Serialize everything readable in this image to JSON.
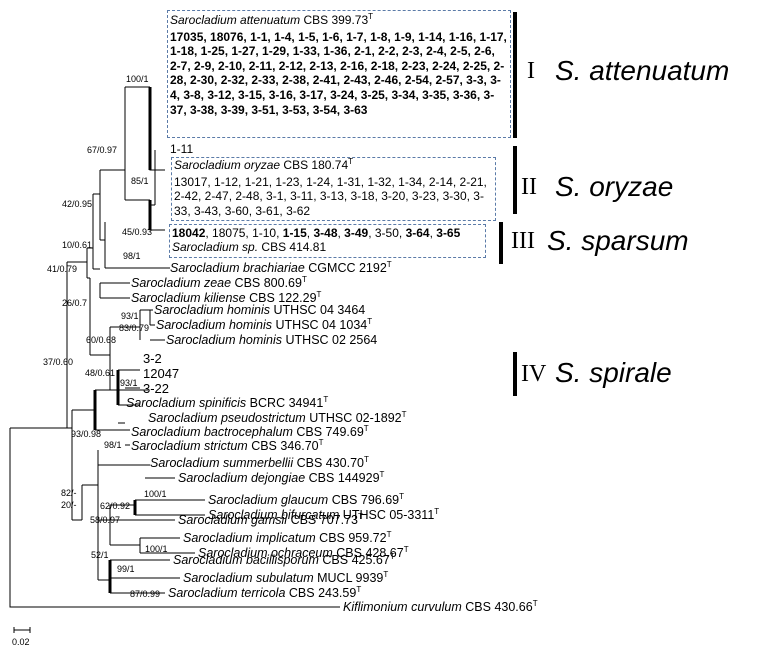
{
  "taxa": {
    "attenuatum_type": {
      "genus": "Sarocladium",
      "species": "attenuatum",
      "strain": "CBS 399.73",
      "sup": "T"
    },
    "attenuatum_strains": "17035, 18076, 1-1, 1-4, 1-5, 1-6, 1-7, 1-8, 1-9, 1-14, 1-16, 1-17, 1-18, 1-25, 1-27, 1-29, 1-33, 1-36, 2-1, 2-2, 2-3, 2-4, 2-5, 2-6, 2-7, 2-9, 2-10, 2-11, 2-12, 2-13, 2-16, 2-18, 2-23, 2-24, 2-25, 2-28, 2-30, 2-32, 2-33, 2-38, 2-41, 2-43, 2-46, 2-54, 2-57, 3-3, 3-4, 3-8, 3-12, 3-15, 3-16, 3-17, 3-24, 3-25, 3-34, 3-35, 3-36, 3-37, 3-38, 3-39, 3-51, 3-53, 3-54, 3-63",
    "oryzae_1_11": "1-11",
    "oryzae_type": {
      "genus": "Sarocladium",
      "species": "oryzae",
      "strain": "CBS 180.74",
      "sup": "T"
    },
    "oryzae_strains": "13017, 1-12, 1-21, 1-23, 1-24, 1-31, 1-32, 1-34, 2-14, 2-21, 2-42, 2-47, 2-48, 3-1, 3-11, 3-13, 3-18, 3-20, 3-23, 3-30, 3-33, 3-43, 3-60, 3-61, 3-62",
    "sparsum_strains": {
      "parts": [
        {
          "t": "18042",
          "b": true
        },
        {
          "t": ", 18075, 1-10, ",
          "b": false
        },
        {
          "t": "1-15",
          "b": true
        },
        {
          "t": ", ",
          "b": false
        },
        {
          "t": "3-48",
          "b": true
        },
        {
          "t": ", ",
          "b": false
        },
        {
          "t": "3-49",
          "b": true
        },
        {
          "t": ", 3-50, ",
          "b": false
        },
        {
          "t": "3-64",
          "b": true
        },
        {
          "t": ", ",
          "b": false
        },
        {
          "t": "3-65",
          "b": true
        }
      ]
    },
    "sparsum_sp": {
      "genus": "Sarocladium",
      "species": "sp.",
      "strain": "CBS 414.81"
    },
    "brachiariae": {
      "name": "Sarocladium brachiariae",
      "strain": "CGMCC 2192",
      "sup": "T"
    },
    "zeae": {
      "name": "Sarocladium zeae",
      "strain": "CBS 800.69",
      "sup": "T"
    },
    "kiliense": {
      "name": "Sarocladium kiliense",
      "strain": "CBS 122.29",
      "sup": "T"
    },
    "hominis1": {
      "name": "Sarocladium hominis",
      "strain": "UTHSC 04 3464"
    },
    "hominis2": {
      "name": "Sarocladium hominis",
      "strain": "UTHSC 04 1034",
      "sup": "T"
    },
    "hominis3": {
      "name": "Sarocladium hominis",
      "strain": "UTHSC 02 2564"
    },
    "spirale_3_2": "3-2",
    "spirale_12047": "12047",
    "spirale_3_22": "3-22",
    "spinificis": {
      "name": "Sarocladium spinificis",
      "strain": "BCRC 34941",
      "sup": "T"
    },
    "pseudostrictum": {
      "name": "Sarocladium pseudostrictum",
      "strain": "UTHSC 02-1892",
      "sup": "T"
    },
    "bactrocephalum": {
      "name": "Sarocladium bactrocephalum",
      "strain": "CBS 749.69",
      "sup": "T"
    },
    "strictum": {
      "name": "Sarocladium strictum",
      "strain": "CBS 346.70",
      "sup": "T"
    },
    "summerbellii": {
      "name": "Sarocladium summerbellii",
      "strain": "CBS 430.70",
      "sup": "T"
    },
    "dejongiae": {
      "name": "Sarocladium dejongiae",
      "strain": "CBS 144929",
      "sup": "T"
    },
    "glaucum": {
      "name": "Sarocladium glaucum",
      "strain": "CBS 796.69",
      "sup": "T"
    },
    "bifurcatum": {
      "name": "Sarocladium bifurcatum",
      "strain": "UTHSC 05-3311",
      "sup": "T"
    },
    "gamsii": {
      "name": "Sarocladium gamsii",
      "strain": "CBS 707.73",
      "sup": "T"
    },
    "implicatum": {
      "name": "Sarocladium implicatum",
      "strain": "CBS 959.72",
      "sup": "T"
    },
    "ochraceum": {
      "name": "Sarocladium ochraceum",
      "strain": "CBS 428.67",
      "sup": "T"
    },
    "bacillisporum": {
      "name": "Sarocladium bacillisporum",
      "strain": "CBS 425.67",
      "sup": "T"
    },
    "subulatum": {
      "name": "Sarocladium subulatum",
      "strain": "MUCL 9939",
      "sup": "T"
    },
    "terricola": {
      "name": "Sarocladium terricola",
      "strain": "CBS 243.59",
      "sup": "T"
    },
    "curvulum": {
      "name": "Kiflimonium curvulum",
      "strain": "CBS 430.66",
      "sup": "T"
    }
  },
  "supports": {
    "s100_1": "100/1",
    "s67": "67/0.97",
    "s85": "85/1",
    "s42": "42/0.95",
    "s45": "45/0.93",
    "s98_1": "98/1",
    "s10": "10/0.61",
    "s41": "41/0.79",
    "s26": "26/0.7",
    "s93_1a": "93/1",
    "s83": "83/0.79",
    "s60": "60/0.68",
    "s48": "48/0.61",
    "s93_1b": "93/1",
    "s37": "37/0.60",
    "s93_98": "93/0.98",
    "s98_1b": "98/1",
    "s82": "82/-",
    "s20": "20/-",
    "s100_1b": "100/1",
    "s62": "62/0.92",
    "s58": "58/0.97",
    "s100_1c": "100/1",
    "s52": "52/1",
    "s99": "99/1",
    "s87": "87/0.99"
  },
  "clades": {
    "I": {
      "roman": "I",
      "name": "S. attenuatum"
    },
    "II": {
      "roman": "II",
      "name": "S. oryzae"
    },
    "III": {
      "roman": "III",
      "name": "S. sparsum"
    },
    "IV": {
      "roman": "IV",
      "name": "S. spirale"
    }
  },
  "scale": {
    "value": "0.02"
  }
}
